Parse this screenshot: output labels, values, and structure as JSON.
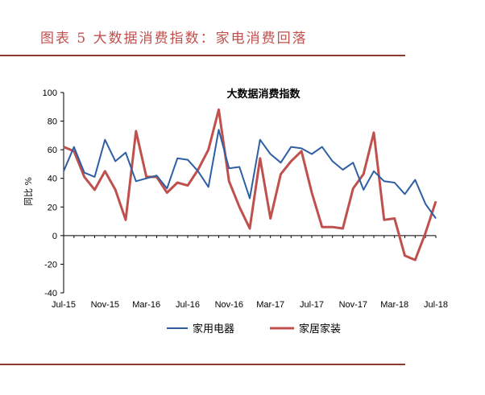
{
  "figure_title": "图表 5 大数据消费指数：家电消费回落",
  "chart_data": {
    "type": "line",
    "title": "大数据消费指数",
    "ylabel": "同比 %",
    "xlabel": "",
    "ylim": [
      -40,
      100
    ],
    "yticks": [
      -40,
      -20,
      0,
      20,
      40,
      60,
      80,
      100
    ],
    "x": [
      "2015-07",
      "2015-08",
      "2015-09",
      "2015-10",
      "2015-11",
      "2015-12",
      "2016-01",
      "2016-02",
      "2016-03",
      "2016-04",
      "2016-05",
      "2016-06",
      "2016-07",
      "2016-08",
      "2016-09",
      "2016-10",
      "2016-11",
      "2016-12",
      "2017-01",
      "2017-02",
      "2017-03",
      "2017-04",
      "2017-05",
      "2017-06",
      "2017-07",
      "2017-08",
      "2017-09",
      "2017-10",
      "2017-11",
      "2017-12",
      "2018-01",
      "2018-02",
      "2018-03",
      "2018-04",
      "2018-05",
      "2018-06",
      "2018-07"
    ],
    "xtick_labels": [
      "Jul-15",
      "Nov-15",
      "Mar-16",
      "Jul-16",
      "Nov-16",
      "Mar-17",
      "Jul-17",
      "Nov-17",
      "Mar-18",
      "Jul-18"
    ],
    "legend_position": "bottom",
    "grid": false,
    "series": [
      {
        "name": "家用电器",
        "color": "#2e5fa3",
        "values": [
          45,
          62,
          44,
          41,
          67,
          52,
          58,
          38,
          40,
          42,
          33,
          54,
          53,
          45,
          34,
          74,
          47,
          48,
          26,
          67,
          57,
          51,
          62,
          61,
          57,
          62,
          52,
          46,
          51,
          32,
          45,
          38,
          37,
          29,
          39,
          22,
          12
        ]
      },
      {
        "name": "家居家装",
        "color": "#c0504d",
        "values": [
          62,
          59,
          41,
          32,
          45,
          32,
          11,
          73,
          41,
          41,
          30,
          37,
          35,
          46,
          60,
          88,
          38,
          20,
          5,
          54,
          12,
          43,
          52,
          59,
          30,
          6,
          6,
          5,
          33,
          43,
          72,
          11,
          12,
          -14,
          -17,
          2,
          24
        ]
      }
    ]
  }
}
